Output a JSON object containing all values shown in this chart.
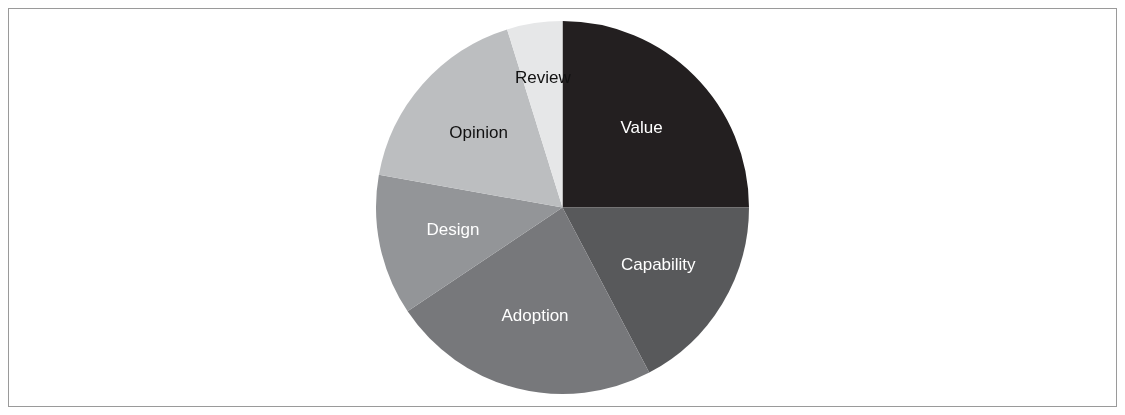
{
  "chart_data": {
    "type": "pie",
    "categories": [
      "Value",
      "Capability",
      "Adoption",
      "Design",
      "Opinion",
      "Review"
    ],
    "values": [
      25,
      17.3,
      23.3,
      12.2,
      17.4,
      4.8
    ],
    "colors": [
      "#231f20",
      "#58595b",
      "#77787b",
      "#939598",
      "#bcbec0",
      "#e6e7e8"
    ],
    "legend": false
  }
}
